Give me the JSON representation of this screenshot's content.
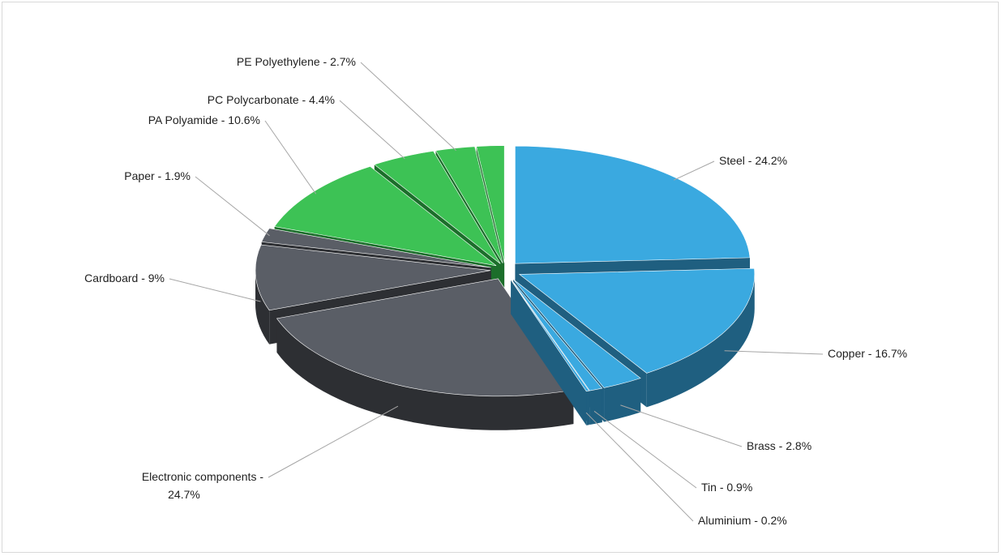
{
  "chart_data": {
    "type": "pie",
    "title": "",
    "legend": "none",
    "slices": [
      {
        "label": "Steel",
        "value": 24.2,
        "display": "Steel - 24.2%",
        "color": "#3aa9e0",
        "side": "#1f5f80"
      },
      {
        "label": "Copper",
        "value": 16.7,
        "display": "Copper - 16.7%",
        "color": "#3aa9e0",
        "side": "#1f5f80"
      },
      {
        "label": "Brass",
        "value": 2.8,
        "display": "Brass - 2.8%",
        "color": "#3aa9e0",
        "side": "#1f5f80"
      },
      {
        "label": "Tin",
        "value": 0.9,
        "display": "Tin - 0.9%",
        "color": "#3aa9e0",
        "side": "#1f5f80"
      },
      {
        "label": "Aluminium",
        "value": 0.2,
        "display": "Aluminium - 0.2%",
        "color": "#3aa9e0",
        "side": "#1f5f80"
      },
      {
        "label": "Electronic components",
        "value": 24.7,
        "display": "Electronic components - 24.7%",
        "color": "#5a5e66",
        "side": "#2d2f33"
      },
      {
        "label": "Cardboard",
        "value": 9,
        "display": "Cardboard - 9%",
        "color": "#5a5e66",
        "side": "#2d2f33"
      },
      {
        "label": "Paper",
        "value": 1.9,
        "display": "Paper - 1.9%",
        "color": "#5a5e66",
        "side": "#2d2f33"
      },
      {
        "label": "PA Polyamide",
        "value": 10.6,
        "display": "PA Polyamide - 10.6%",
        "color": "#3dc255",
        "side": "#1c6e2b"
      },
      {
        "label": "PC Polycarbonate",
        "value": 4.4,
        "display": "PC Polycarbonate - 4.4%",
        "color": "#3dc255",
        "side": "#1c6e2b"
      },
      {
        "label": "PE Polyethylene",
        "value": 2.7,
        "display": "PE Polyethylene - 2.7%",
        "color": "#3dc255",
        "side": "#1c6e2b"
      },
      {
        "label": "",
        "value": 1.9,
        "display": "",
        "color": "#3dc255",
        "side": "#1c6e2b"
      }
    ]
  }
}
